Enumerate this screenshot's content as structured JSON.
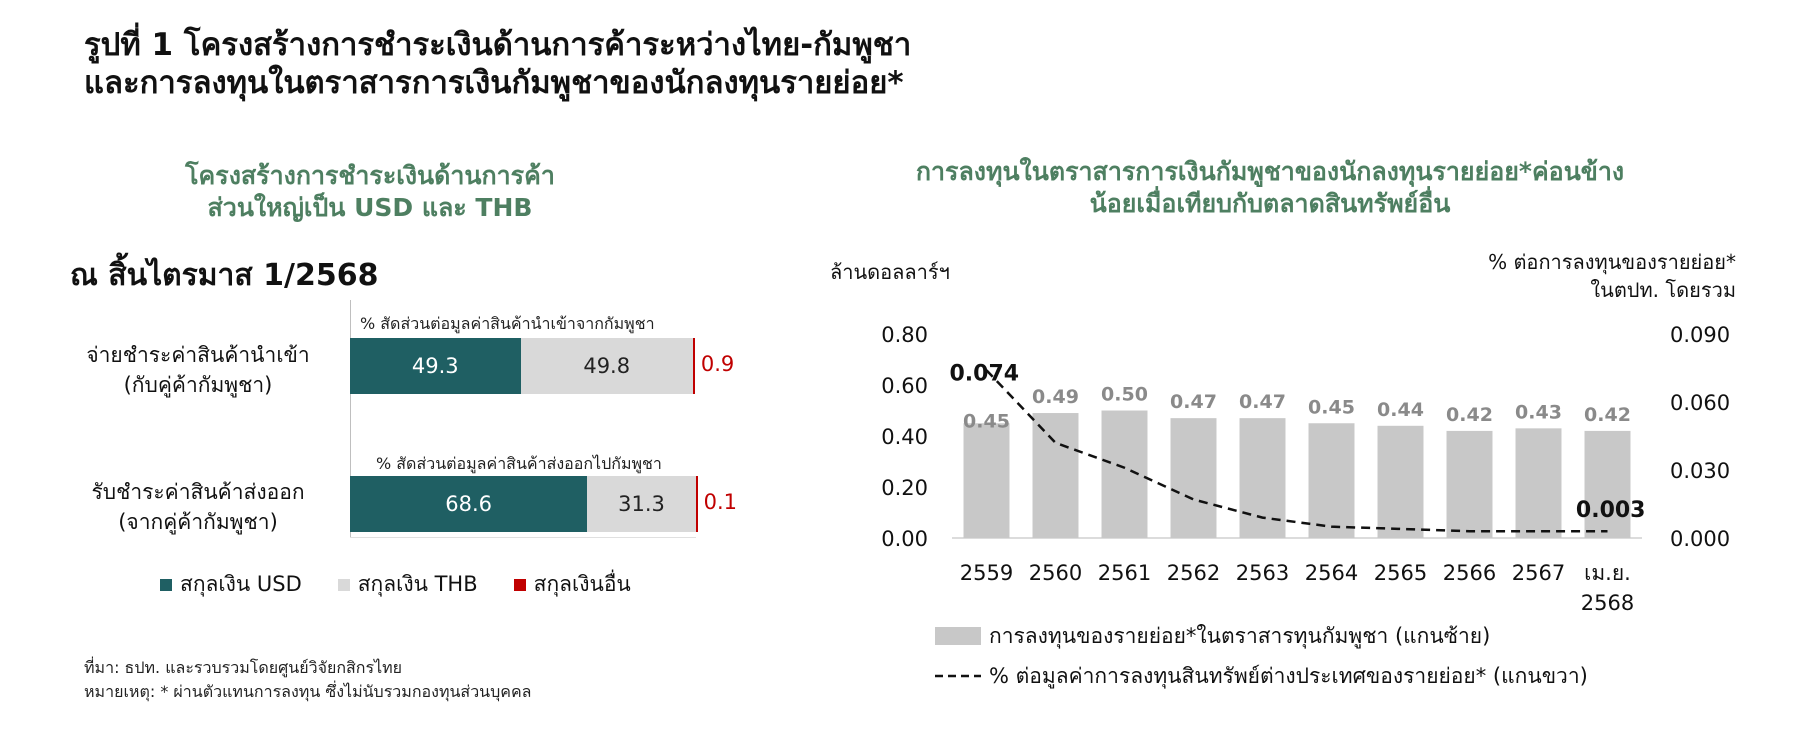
{
  "title_line1": "รูปที่ 1 โครงสร้างการชำระเงินด้านการค้าระหว่างไทย-กัมพูชา",
  "title_line2": "และการลงทุนในตราสารการเงินกัมพูชาของนักลงทุนรายย่อย*",
  "left": {
    "heading_line1": "โครงสร้างการชำระเงินด้านการค้า",
    "heading_line2": "ส่วนใหญ่เป็น USD และ THB",
    "as_of": "ณ สิ้นไตรมาส 1/2568"
  },
  "right": {
    "heading_line1": "การลงทุนในตราสารการเงินกัมพูชาของนักลงทุนรายย่อย*ค่อนข้าง",
    "heading_line2": "น้อยเมื่อเทียบกับตลาดสินทรัพย์อื่น",
    "left_axis_unit": "ล้านดอลลาร์ฯ",
    "right_axis_unit_line1": "% ต่อการลงทุนของรายย่อย*",
    "right_axis_unit_line2": "ในตปท. โดยรวม"
  },
  "footnotes": {
    "source": "ที่มา: ธปท. และรวบรวมโดยศูนย์วิจัยกสิกรไทย",
    "note": "หมายเหตุ: * ผ่านตัวแทนการลงทุน ซึ่งไม่นับรวมกองทุนส่วนบุคคล"
  },
  "colors": {
    "usd": "#1f5f63",
    "thb": "#d9d9d9",
    "other": "#c00000",
    "bar": "#c8c8c8",
    "heading": "#4e7f61"
  },
  "chart_data": [
    {
      "type": "bar",
      "orientation": "horizontal",
      "stacked": true,
      "categories": [
        {
          "label_line1": "จ่ายชำระค่าสินค้านำเข้า",
          "label_line2": "(กับคู่ค้ากัมพูชา)",
          "caption": "% สัดส่วนต่อมูลค่าสินค้านำเข้าจากกัมพูชา"
        },
        {
          "label_line1": "รับชำระค่าสินค้าส่งออก",
          "label_line2": "(จากคู่ค้ากัมพูชา)",
          "caption": "% สัดส่วนต่อมูลค่าสินค้าส่งออกไปกัมพูชา"
        }
      ],
      "series": [
        {
          "name": "สกุลเงิน USD",
          "values": [
            49.3,
            68.6
          ],
          "labels": [
            "49.3",
            "68.6"
          ],
          "color": "#1f5f63"
        },
        {
          "name": "สกุลเงิน THB",
          "values": [
            49.8,
            31.3
          ],
          "labels": [
            "49.8",
            "31.3"
          ],
          "color": "#d9d9d9"
        },
        {
          "name": "สกุลเงินอื่น",
          "values": [
            0.9,
            0.1
          ],
          "labels": [
            "0.9",
            "0.1"
          ],
          "color": "#c00000"
        }
      ]
    },
    {
      "type": "bar",
      "categories": [
        "2559",
        "2560",
        "2561",
        "2562",
        "2563",
        "2564",
        "2565",
        "2566",
        "2567",
        "เม.ย. 2568"
      ],
      "category_lines": [
        [
          "2559"
        ],
        [
          "2560"
        ],
        [
          "2561"
        ],
        [
          "2562"
        ],
        [
          "2563"
        ],
        [
          "2564"
        ],
        [
          "2565"
        ],
        [
          "2566"
        ],
        [
          "2567"
        ],
        [
          "เม.ย.",
          "2568"
        ]
      ],
      "series": [
        {
          "name": "การลงทุนของรายย่อย*ในตราสารทุนกัมพูชา (แกนซ้าย)",
          "type": "bar",
          "axis": "left",
          "values": [
            0.45,
            0.49,
            0.5,
            0.47,
            0.47,
            0.45,
            0.44,
            0.42,
            0.43,
            0.42
          ],
          "labels": [
            "0.45",
            "0.49",
            "0.50",
            "0.47",
            "0.47",
            "0.45",
            "0.44",
            "0.42",
            "0.43",
            "0.42"
          ]
        },
        {
          "name": "% ต่อมูลค่าการลงทุนสินทรัพย์ต่างประเทศของรายย่อย* (แกนขวา)",
          "type": "line",
          "style": "dashed",
          "axis": "right",
          "values": [
            0.074,
            0.042,
            0.031,
            0.017,
            0.009,
            0.005,
            0.004,
            0.003,
            0.003,
            0.003
          ],
          "end_labels": {
            "first": "0.074",
            "last": "0.003"
          }
        }
      ],
      "y_left": {
        "ylim": [
          0,
          0.8
        ],
        "ticks": [
          "0.00",
          "0.20",
          "0.40",
          "0.60",
          "0.80"
        ]
      },
      "y_right": {
        "ylim": [
          0,
          0.09
        ],
        "ticks": [
          "0.000",
          "0.030",
          "0.060",
          "0.090"
        ]
      },
      "legend_position": "bottom",
      "grid": false
    }
  ]
}
